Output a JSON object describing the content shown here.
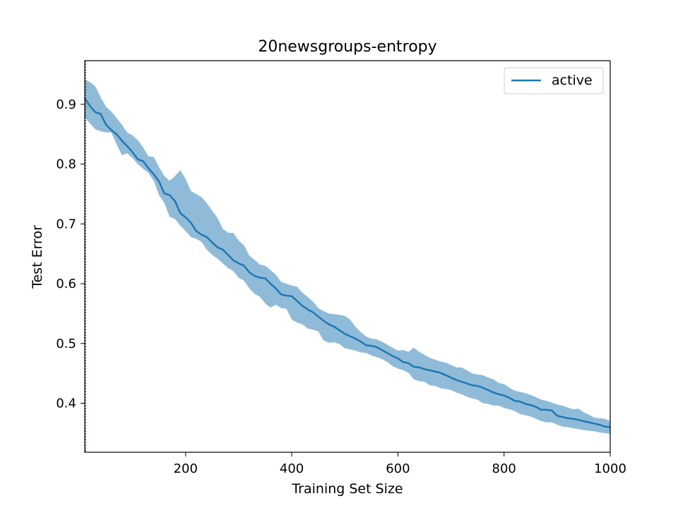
{
  "chart_data": {
    "type": "line",
    "title": "20newsgroups-entropy",
    "xlabel": "Training Set Size",
    "ylabel": "Test Error",
    "xlim": [
      10,
      1000
    ],
    "ylim": [
      0.318,
      0.973
    ],
    "xticks": [
      200,
      400,
      600,
      800,
      1000
    ],
    "yticks": [
      0.4,
      0.5,
      0.6,
      0.7,
      0.8,
      0.9
    ],
    "legend_position": "top-right",
    "grid": false,
    "vline_x": 10,
    "series": [
      {
        "name": "active",
        "color": "#1f77b4",
        "band_color": "#1f77b4",
        "x": [
          10,
          20,
          30,
          40,
          50,
          60,
          70,
          80,
          90,
          100,
          110,
          120,
          130,
          140,
          150,
          160,
          170,
          180,
          190,
          200,
          210,
          220,
          230,
          240,
          250,
          260,
          270,
          280,
          290,
          300,
          310,
          320,
          330,
          340,
          350,
          360,
          370,
          380,
          390,
          400,
          410,
          420,
          430,
          440,
          450,
          460,
          470,
          480,
          490,
          500,
          510,
          520,
          530,
          540,
          550,
          560,
          570,
          580,
          590,
          600,
          610,
          620,
          630,
          640,
          650,
          660,
          670,
          680,
          690,
          700,
          710,
          720,
          730,
          740,
          750,
          760,
          770,
          780,
          790,
          800,
          810,
          820,
          830,
          840,
          850,
          860,
          870,
          880,
          890,
          900,
          910,
          920,
          930,
          940,
          950,
          960,
          970,
          980,
          990,
          1000
        ],
        "y": [
          0.91,
          0.897,
          0.887,
          0.884,
          0.866,
          0.857,
          0.85,
          0.839,
          0.83,
          0.82,
          0.808,
          0.805,
          0.793,
          0.783,
          0.771,
          0.751,
          0.748,
          0.738,
          0.718,
          0.711,
          0.702,
          0.688,
          0.682,
          0.678,
          0.669,
          0.661,
          0.657,
          0.648,
          0.639,
          0.634,
          0.63,
          0.619,
          0.613,
          0.61,
          0.609,
          0.6,
          0.592,
          0.582,
          0.58,
          0.579,
          0.571,
          0.563,
          0.557,
          0.552,
          0.545,
          0.538,
          0.532,
          0.528,
          0.522,
          0.516,
          0.512,
          0.508,
          0.503,
          0.497,
          0.496,
          0.494,
          0.489,
          0.484,
          0.479,
          0.475,
          0.469,
          0.467,
          0.461,
          0.46,
          0.457,
          0.455,
          0.453,
          0.451,
          0.447,
          0.443,
          0.439,
          0.436,
          0.433,
          0.43,
          0.429,
          0.426,
          0.422,
          0.418,
          0.415,
          0.413,
          0.409,
          0.404,
          0.403,
          0.399,
          0.397,
          0.394,
          0.389,
          0.389,
          0.388,
          0.379,
          0.377,
          0.375,
          0.374,
          0.372,
          0.37,
          0.368,
          0.366,
          0.364,
          0.361,
          0.36
        ],
        "lower": [
          0.878,
          0.868,
          0.858,
          0.855,
          0.853,
          0.853,
          0.833,
          0.815,
          0.818,
          0.81,
          0.8,
          0.792,
          0.785,
          0.772,
          0.748,
          0.735,
          0.712,
          0.708,
          0.697,
          0.688,
          0.678,
          0.675,
          0.67,
          0.657,
          0.648,
          0.642,
          0.634,
          0.626,
          0.621,
          0.61,
          0.605,
          0.592,
          0.583,
          0.578,
          0.567,
          0.56,
          0.565,
          0.559,
          0.558,
          0.54,
          0.535,
          0.532,
          0.525,
          0.523,
          0.52,
          0.505,
          0.501,
          0.502,
          0.499,
          0.492,
          0.49,
          0.488,
          0.485,
          0.484,
          0.48,
          0.477,
          0.474,
          0.469,
          0.462,
          0.458,
          0.455,
          0.451,
          0.44,
          0.437,
          0.436,
          0.43,
          0.429,
          0.425,
          0.424,
          0.422,
          0.418,
          0.415,
          0.411,
          0.408,
          0.406,
          0.4,
          0.399,
          0.396,
          0.396,
          0.392,
          0.39,
          0.387,
          0.382,
          0.38,
          0.378,
          0.374,
          0.37,
          0.368,
          0.368,
          0.364,
          0.361,
          0.36,
          0.358,
          0.357,
          0.355,
          0.354,
          0.353,
          0.351,
          0.35,
          0.349
        ],
        "upper": [
          0.942,
          0.937,
          0.93,
          0.912,
          0.896,
          0.888,
          0.877,
          0.866,
          0.853,
          0.848,
          0.84,
          0.828,
          0.813,
          0.812,
          0.795,
          0.78,
          0.772,
          0.78,
          0.79,
          0.775,
          0.755,
          0.75,
          0.745,
          0.735,
          0.722,
          0.71,
          0.692,
          0.685,
          0.685,
          0.672,
          0.664,
          0.647,
          0.64,
          0.632,
          0.63,
          0.623,
          0.615,
          0.603,
          0.6,
          0.597,
          0.595,
          0.585,
          0.578,
          0.57,
          0.559,
          0.554,
          0.55,
          0.549,
          0.548,
          0.546,
          0.54,
          0.528,
          0.519,
          0.512,
          0.508,
          0.507,
          0.503,
          0.498,
          0.493,
          0.488,
          0.489,
          0.486,
          0.493,
          0.486,
          0.481,
          0.476,
          0.473,
          0.47,
          0.468,
          0.464,
          0.46,
          0.46,
          0.455,
          0.45,
          0.448,
          0.447,
          0.443,
          0.44,
          0.434,
          0.432,
          0.426,
          0.421,
          0.419,
          0.417,
          0.414,
          0.41,
          0.406,
          0.404,
          0.401,
          0.398,
          0.396,
          0.393,
          0.39,
          0.391,
          0.385,
          0.381,
          0.376,
          0.375,
          0.374,
          0.37
        ]
      }
    ]
  }
}
